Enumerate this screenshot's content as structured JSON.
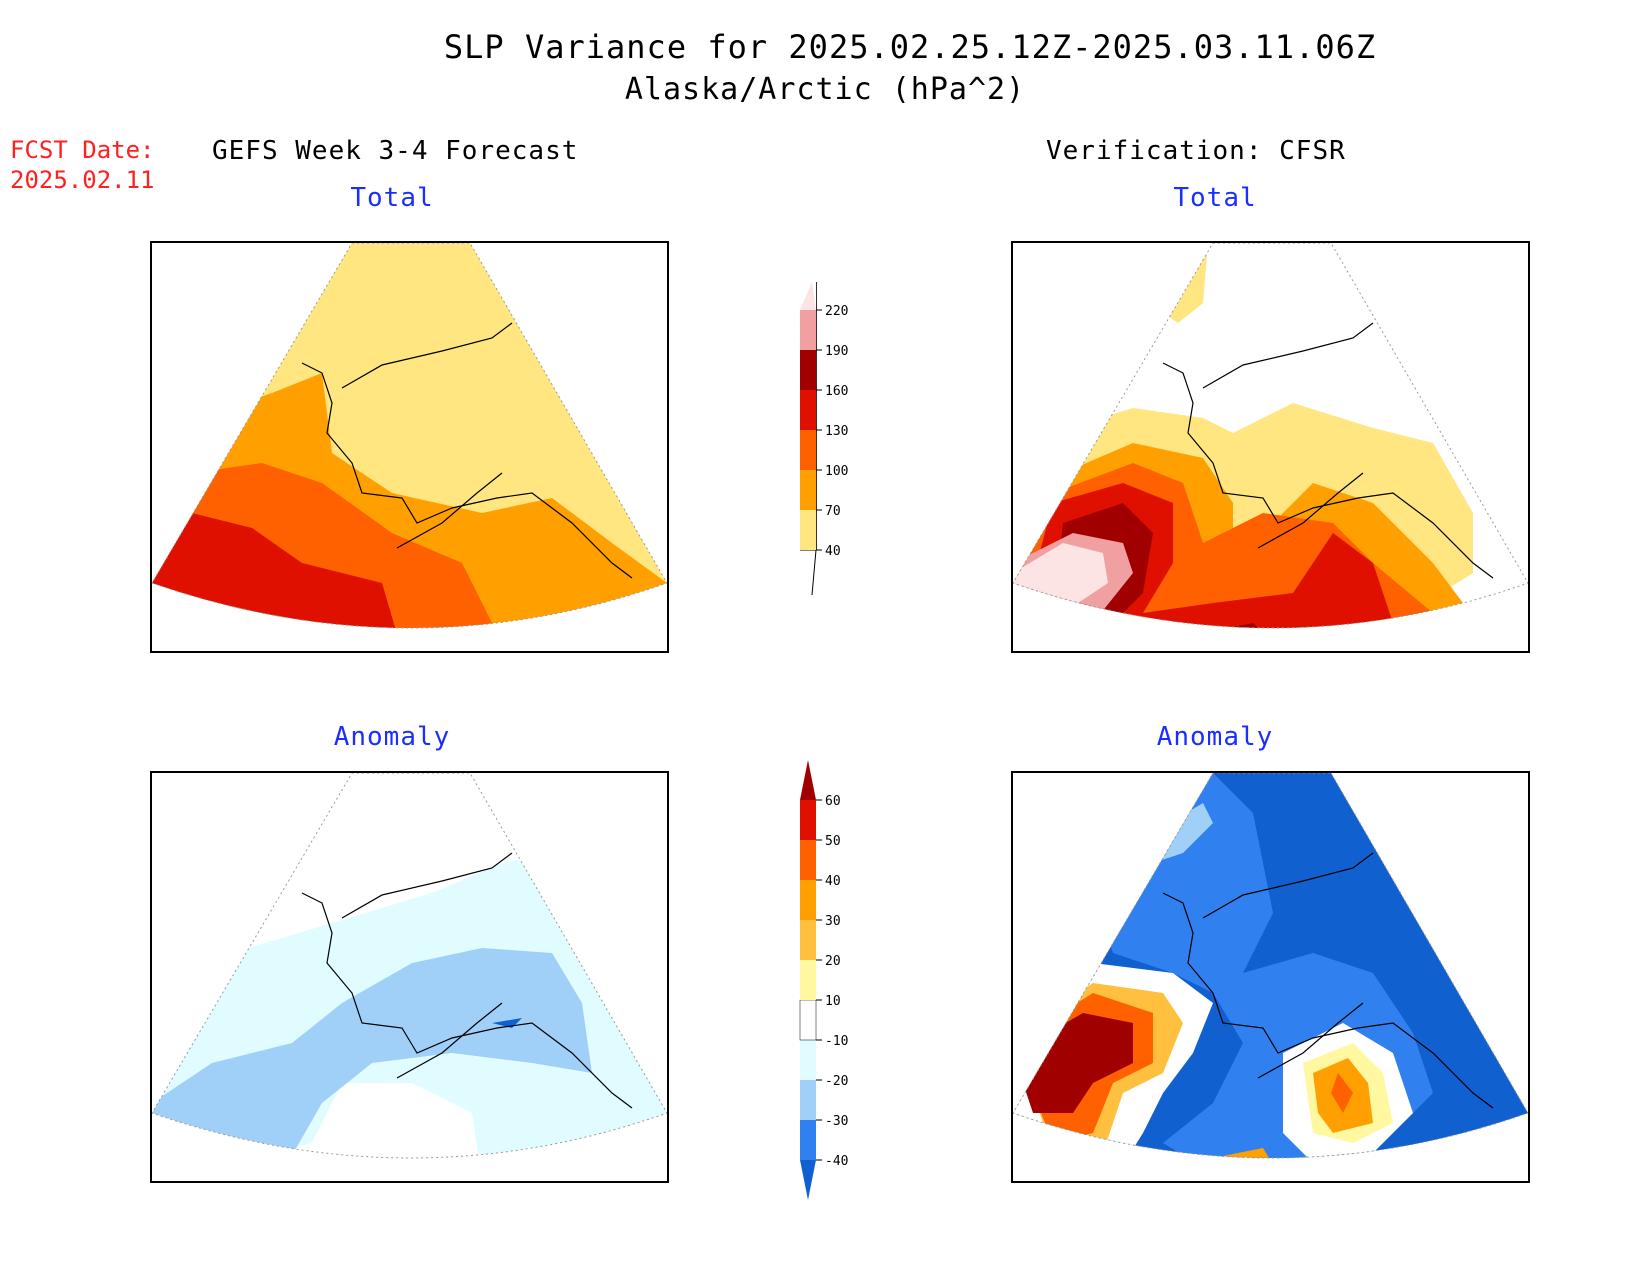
{
  "title": "SLP Variance for 2025.02.25.12Z-2025.03.11.06Z",
  "subtitle": "Alaska/Arctic (hPa^2)",
  "forecast_date": {
    "label": "FCST Date:",
    "value": "2025.02.11"
  },
  "columns": {
    "left": "GEFS Week 3-4 Forecast",
    "right": "Verification: CFSR"
  },
  "panel_labels": {
    "forecast_total": "Total",
    "forecast_anomaly": "Anomaly",
    "verification_total": "Total",
    "verification_anomaly": "Anomaly"
  },
  "total_colorbar": {
    "levels": [
      "40",
      "70",
      "100",
      "130",
      "160",
      "190",
      "220"
    ],
    "colors": [
      "#ffe680",
      "#ffa000",
      "#ff6000",
      "#e01000",
      "#a00000",
      "#f0a0a0",
      "#fde4e4"
    ]
  },
  "anomaly_colorbar": {
    "levels": [
      "-40",
      "-30",
      "-20",
      "-10",
      "10",
      "20",
      "30",
      "40",
      "50",
      "60"
    ],
    "colors": [
      "#1060d0",
      "#3080f0",
      "#a0d0f8",
      "#e0fcff",
      "#ffffff",
      "#fff8a0",
      "#ffc040",
      "#ffa000",
      "#ff6000",
      "#e01000",
      "#a00000"
    ]
  }
}
